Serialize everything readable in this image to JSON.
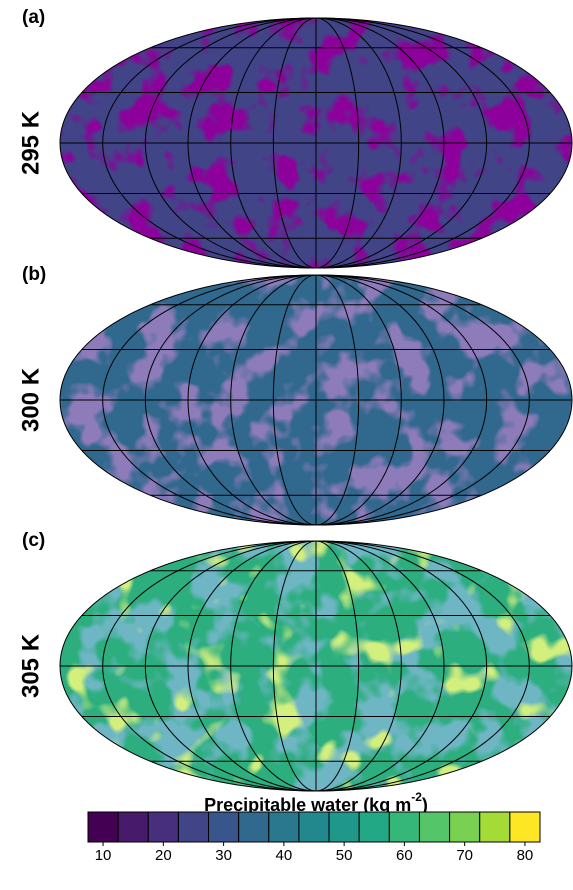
{
  "panels": [
    {
      "label": "(a)",
      "temperature": "295 K"
    },
    {
      "label": "(b)",
      "temperature": "300 K"
    },
    {
      "label": "(c)",
      "temperature": "305 K"
    }
  ],
  "colorbar": {
    "title_parts": [
      "Precipitable water (kg m",
      "-2",
      ")"
    ],
    "levels": [
      7.5,
      12.5,
      17.5,
      22.5,
      27.5,
      32.5,
      37.5,
      42.5,
      47.5,
      52.5,
      57.5,
      62.5,
      67.5,
      72.5,
      77.5,
      82.5
    ],
    "colors": [
      "#440154",
      "#481a6c",
      "#472f7d",
      "#414487",
      "#39568c",
      "#31688e",
      "#2a788e",
      "#23888e",
      "#1f988b",
      "#22a884",
      "#35b779",
      "#54c568",
      "#7ad151",
      "#a5db36",
      "#fde725"
    ],
    "ticks": [
      10,
      20,
      30,
      40,
      50,
      60,
      70,
      80
    ]
  }
}
